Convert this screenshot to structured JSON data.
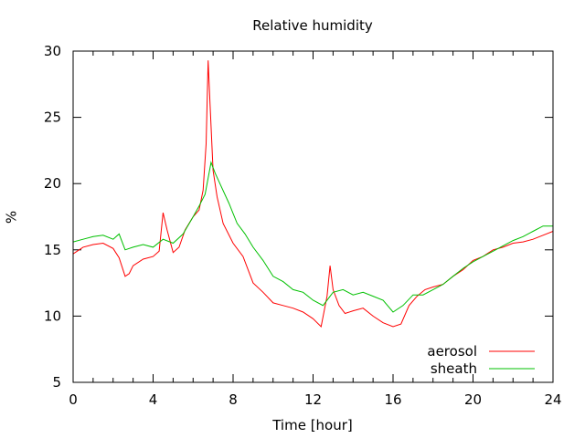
{
  "chart_data": {
    "type": "line",
    "title": "Relative humidity",
    "xlabel": "Time [hour]",
    "ylabel": "%",
    "xlim": [
      0,
      24
    ],
    "ylim": [
      5,
      30
    ],
    "xticks": [
      0,
      4,
      8,
      12,
      16,
      20,
      24
    ],
    "yticks": [
      5,
      10,
      15,
      20,
      25,
      30
    ],
    "grid": false,
    "legend_position": "bottom-right",
    "series": [
      {
        "name": "aerosol",
        "color": "#ff0000",
        "x": [
          0,
          0.5,
          1,
          1.5,
          2,
          2.3,
          2.6,
          2.8,
          3,
          3.5,
          4,
          4.3,
          4.5,
          4.7,
          5,
          5.3,
          5.6,
          6,
          6.3,
          6.5,
          6.65,
          6.75,
          6.85,
          7,
          7.2,
          7.5,
          8,
          8.5,
          9,
          9.5,
          10,
          10.5,
          11,
          11.5,
          12,
          12.4,
          12.7,
          12.85,
          13,
          13.3,
          13.6,
          14,
          14.5,
          15,
          15.5,
          16,
          16.4,
          16.8,
          17.2,
          17.6,
          18,
          18.5,
          19,
          19.5,
          20,
          20.5,
          21,
          21.5,
          22,
          22.5,
          23,
          23.5,
          24
        ],
        "y": [
          14.7,
          15.2,
          15.4,
          15.5,
          15.1,
          14.4,
          13.0,
          13.2,
          13.8,
          14.3,
          14.5,
          14.9,
          17.8,
          16.5,
          14.8,
          15.2,
          16.5,
          17.5,
          18.0,
          19.5,
          23.0,
          29.3,
          26.0,
          21.0,
          19.0,
          17.0,
          15.5,
          14.5,
          12.5,
          11.8,
          11.0,
          10.8,
          10.6,
          10.3,
          9.8,
          9.2,
          11.5,
          13.8,
          12.0,
          10.8,
          10.2,
          10.4,
          10.6,
          10.0,
          9.5,
          9.2,
          9.4,
          10.8,
          11.5,
          12.0,
          12.2,
          12.4,
          13.0,
          13.5,
          14.2,
          14.5,
          15.0,
          15.2,
          15.5,
          15.6,
          15.8,
          16.1,
          16.4
        ]
      },
      {
        "name": "sheath",
        "color": "#00c000",
        "x": [
          0,
          0.5,
          1,
          1.5,
          2,
          2.3,
          2.6,
          3,
          3.5,
          4,
          4.5,
          5,
          5.5,
          6,
          6.3,
          6.6,
          6.9,
          7.1,
          7.4,
          7.8,
          8.2,
          8.6,
          9,
          9.5,
          10,
          10.5,
          11,
          11.5,
          12,
          12.5,
          13,
          13.5,
          14,
          14.5,
          15,
          15.5,
          16,
          16.5,
          17,
          17.5,
          18,
          18.5,
          19,
          19.5,
          20,
          20.5,
          21,
          21.5,
          22,
          22.5,
          23,
          23.5,
          24
        ],
        "y": [
          15.6,
          15.8,
          16.0,
          16.1,
          15.8,
          16.2,
          15.0,
          15.2,
          15.4,
          15.2,
          15.8,
          15.5,
          16.2,
          17.5,
          18.3,
          19.2,
          21.6,
          20.8,
          19.8,
          18.5,
          17.0,
          16.2,
          15.2,
          14.2,
          13.0,
          12.6,
          12.0,
          11.8,
          11.2,
          10.8,
          11.8,
          12.0,
          11.6,
          11.8,
          11.5,
          11.2,
          10.3,
          10.8,
          11.6,
          11.6,
          12.0,
          12.4,
          13.0,
          13.6,
          14.1,
          14.5,
          14.9,
          15.3,
          15.7,
          16.0,
          16.4,
          16.8,
          16.8
        ]
      }
    ]
  }
}
